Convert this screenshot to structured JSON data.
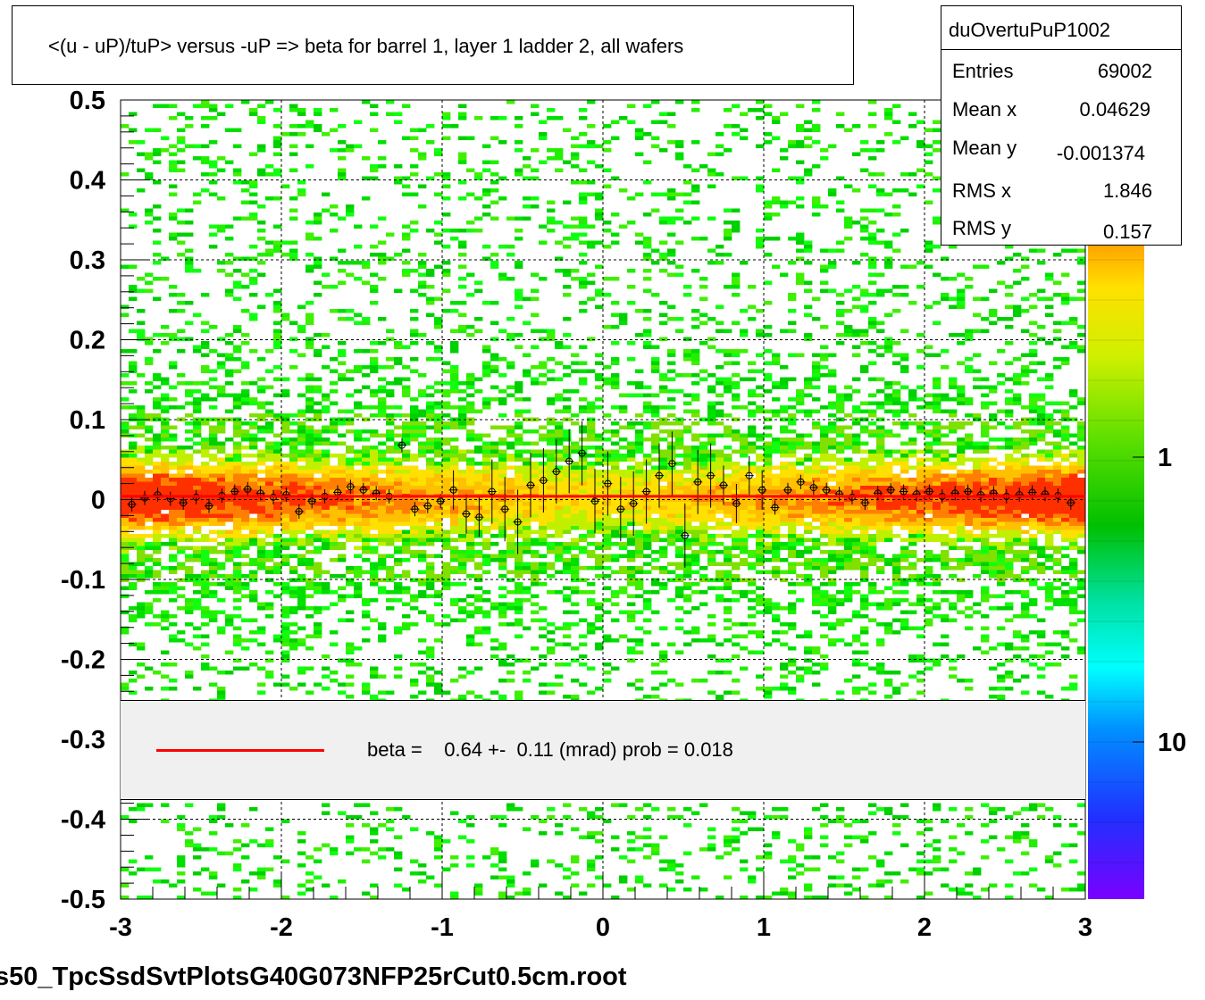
{
  "title": "<(u - uP)/tuP> versus  -uP => beta for barrel 1, layer 1 ladder 2, all wafers",
  "stats": {
    "name": "duOvertuPuP1002",
    "rows": [
      {
        "label": "Entries",
        "value": "69002"
      },
      {
        "label": "Mean x",
        "value": "0.04629"
      },
      {
        "label": "Mean y",
        "value": "-0.001374"
      },
      {
        "label": "RMS x",
        "value": "1.846"
      },
      {
        "label": "RMS y",
        "value": "0.157"
      }
    ]
  },
  "legend": {
    "text": "beta =    0.64 +-  0.11 (mrad) prob = 0.018",
    "line_color": "#ff0000"
  },
  "footer": "s50_TpcSsdSvtPlotsG40G073NFP25rCut0.5cm.root",
  "colors": {
    "fit_line": "#ff0000",
    "frame": "#000000",
    "grid": "#000000"
  },
  "chart_data": {
    "type": "heatmap",
    "x_range": [
      -3,
      3
    ],
    "y_range": [
      -0.5,
      0.5
    ],
    "x_ticks": [
      "-3",
      "-2",
      "-1",
      "0",
      "1",
      "2",
      "3"
    ],
    "y_ticks": [
      "0.5",
      "0.4",
      "0.3",
      "0.2",
      "0.1",
      "0",
      "-0.1",
      "-0.2",
      "-0.3",
      "-0.4",
      "-0.5"
    ],
    "grid": true,
    "z_scale": "log",
    "z_labels": [
      "1",
      "10"
    ],
    "fit_line": {
      "x": [
        -3,
        3
      ],
      "y": [
        0.004,
        0.004
      ]
    },
    "profile_points": {
      "x": [
        -2.93,
        -2.85,
        -2.77,
        -2.69,
        -2.61,
        -2.53,
        -2.45,
        -2.37,
        -2.29,
        -2.21,
        -2.13,
        -2.05,
        -1.97,
        -1.89,
        -1.81,
        -1.73,
        -1.65,
        -1.57,
        -1.49,
        -1.41,
        -1.33,
        -1.25,
        -1.17,
        -1.09,
        -1.01,
        -0.93,
        -0.85,
        -0.77,
        -0.69,
        -0.61,
        -0.53,
        -0.45,
        -0.37,
        -0.29,
        -0.21,
        -0.13,
        -0.05,
        0.03,
        0.11,
        0.19,
        0.27,
        0.35,
        0.43,
        0.51,
        0.59,
        0.67,
        0.75,
        0.83,
        0.91,
        0.99,
        1.07,
        1.15,
        1.23,
        1.31,
        1.39,
        1.47,
        1.55,
        1.63,
        1.71,
        1.79,
        1.87,
        1.95,
        2.03,
        2.11,
        2.19,
        2.27,
        2.35,
        2.43,
        2.51,
        2.59,
        2.67,
        2.75,
        2.83,
        2.91
      ],
      "y": [
        -0.006,
        0.002,
        0.006,
        0.001,
        -0.004,
        0.003,
        -0.008,
        0.005,
        0.01,
        0.013,
        0.008,
        0.003,
        0.006,
        -0.015,
        -0.002,
        0.004,
        0.009,
        0.016,
        0.012,
        0.008,
        0.004,
        0.068,
        -0.012,
        -0.008,
        -0.002,
        0.012,
        -0.018,
        -0.022,
        0.01,
        -0.012,
        -0.028,
        0.018,
        0.024,
        0.035,
        0.048,
        0.058,
        -0.002,
        0.02,
        -0.012,
        -0.005,
        0.01,
        0.03,
        0.045,
        -0.045,
        0.022,
        0.03,
        0.018,
        -0.005,
        0.03,
        0.012,
        -0.01,
        0.012,
        0.022,
        0.015,
        0.012,
        0.007,
        0.003,
        -0.004,
        0.008,
        0.012,
        0.01,
        0.007,
        0.01,
        0.004,
        0.008,
        0.01,
        0.006,
        0.008,
        0.004,
        0.006,
        0.009,
        0.007,
        0.005,
        -0.004
      ]
    }
  }
}
